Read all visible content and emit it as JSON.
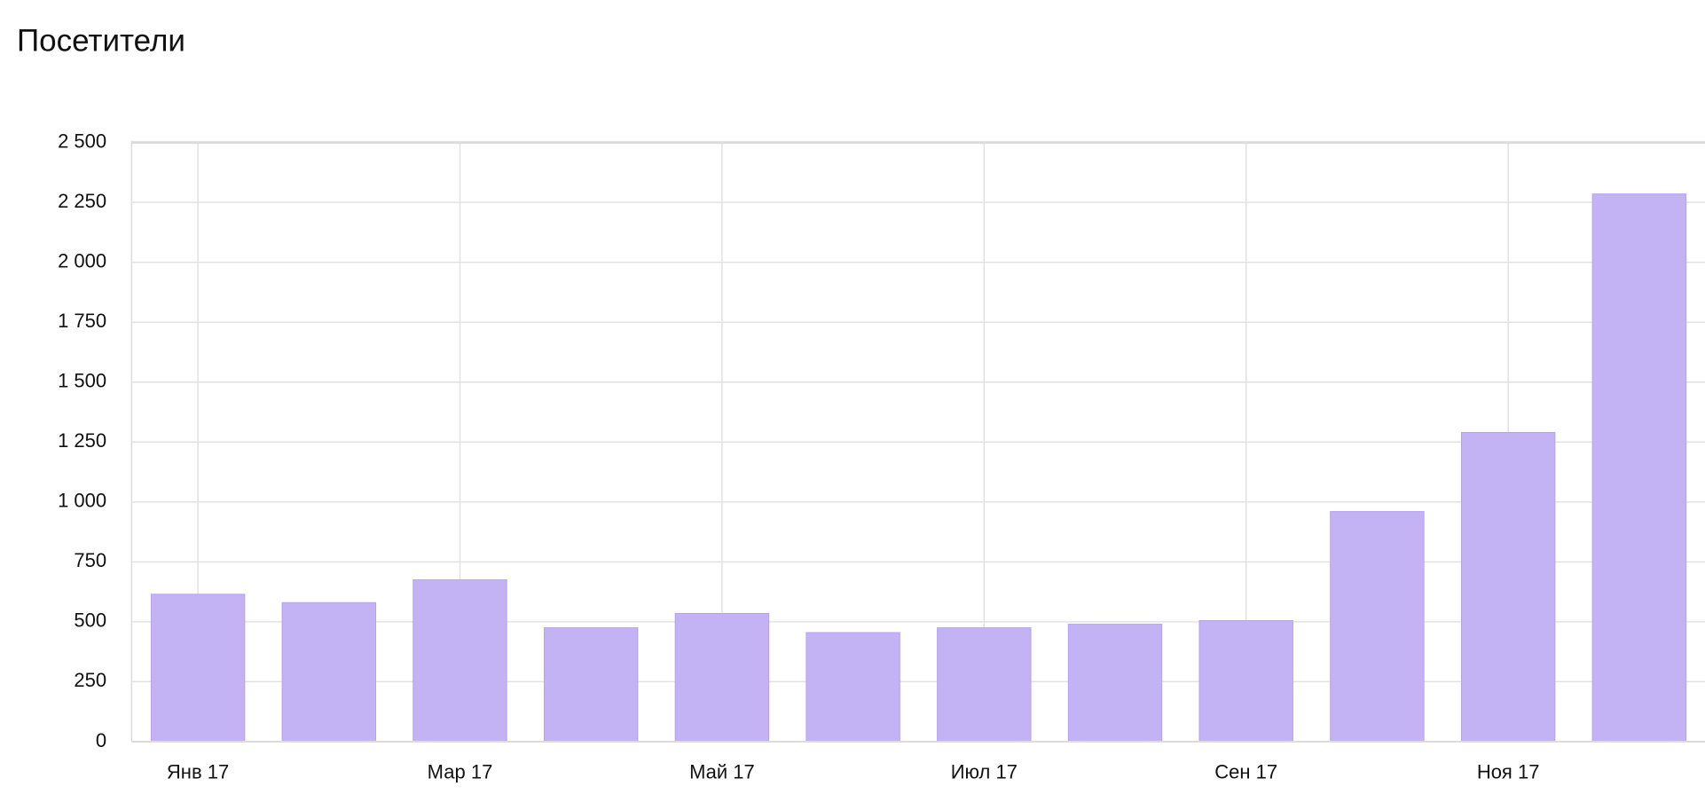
{
  "chart_data": {
    "type": "bar",
    "title": "Посетители",
    "categories": [
      "Янв 17",
      null,
      "Мар 17",
      null,
      "Май 17",
      null,
      "Июл 17",
      null,
      "Сен 17",
      null,
      "Ноя 17",
      null
    ],
    "values": [
      615,
      580,
      675,
      475,
      535,
      455,
      475,
      490,
      505,
      960,
      1290,
      2285
    ],
    "color": "#c3b3f5",
    "ylim": [
      0,
      2500
    ],
    "yticks": [
      0,
      250,
      500,
      750,
      {
        "value": 1000,
        "label": "1 000"
      },
      {
        "value": 1250,
        "label": "1 250"
      },
      {
        "value": 1500,
        "label": "1 500"
      },
      {
        "value": 1750,
        "label": "1 750"
      },
      {
        "value": 2000,
        "label": "2 000"
      },
      {
        "value": 2250,
        "label": "2 250"
      },
      {
        "value": 2500,
        "label": "2 500"
      }
    ],
    "grid": true
  }
}
